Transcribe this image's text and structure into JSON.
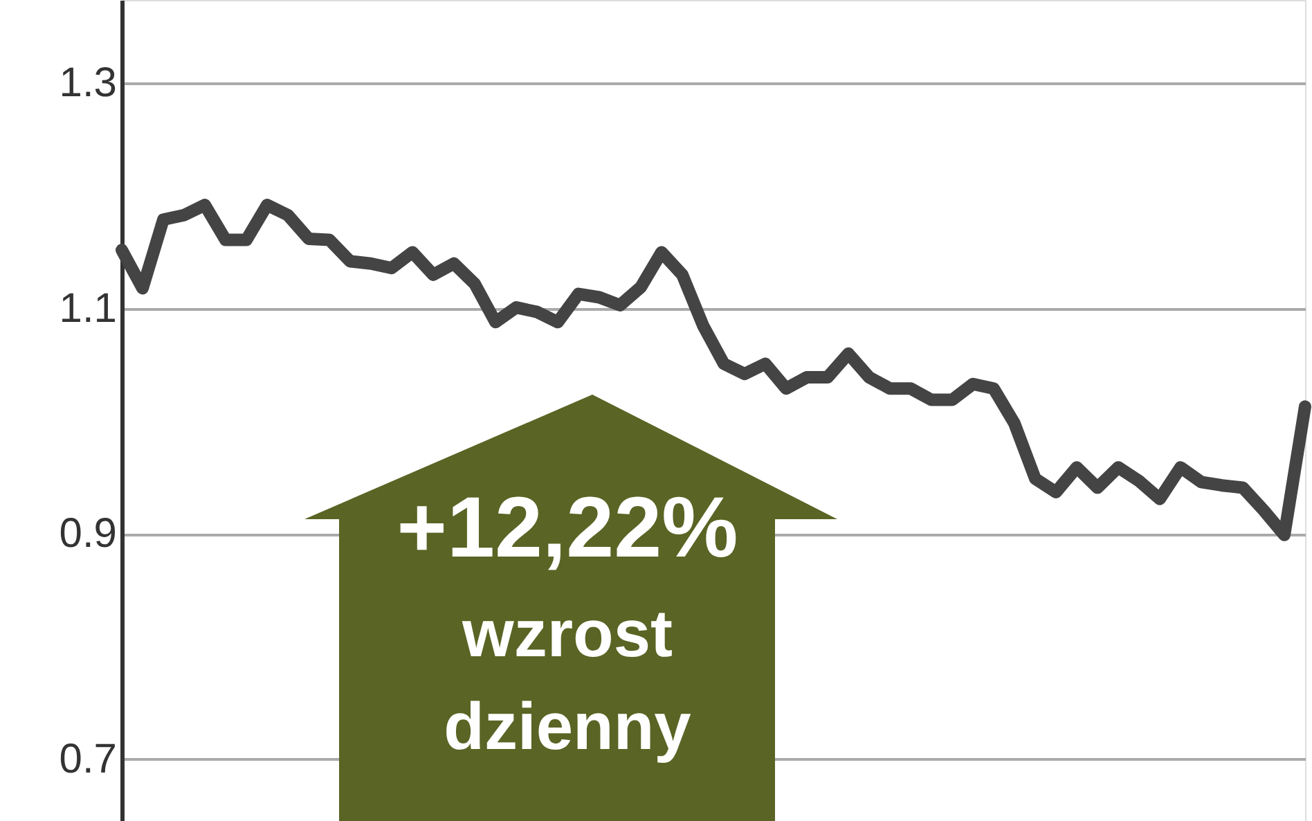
{
  "chart_data": {
    "type": "line",
    "categories": [
      null,
      null,
      null,
      null,
      null,
      null,
      null,
      null,
      null,
      null,
      null,
      null,
      null,
      null,
      null,
      null,
      null,
      null,
      null,
      null,
      null,
      null,
      null,
      null,
      null,
      null,
      null,
      null,
      null,
      null,
      null,
      null,
      null,
      null,
      null,
      null,
      null,
      null,
      null,
      null,
      null,
      null,
      null,
      null,
      null,
      null,
      null,
      null,
      null,
      null,
      null,
      null,
      null,
      null,
      null,
      null,
      null,
      null
    ],
    "series": [
      {
        "color": "#444444",
        "values": [
          1.152,
          1.118,
          1.179,
          1.183,
          1.192,
          1.161,
          1.161,
          1.192,
          1.183,
          1.162,
          1.161,
          1.142,
          1.14,
          1.136,
          1.15,
          1.13,
          1.14,
          1.122,
          1.088,
          1.101,
          1.097,
          1.088,
          1.113,
          1.11,
          1.103,
          1.119,
          1.15,
          1.13,
          1.085,
          1.051,
          1.042,
          1.051,
          1.029,
          1.039,
          1.039,
          1.06,
          1.039,
          1.029,
          1.029,
          1.019,
          1.019,
          1.033,
          1.029,
          0.998,
          0.949,
          0.937,
          0.959,
          0.941,
          0.959,
          0.947,
          0.931,
          0.959,
          0.946,
          0.943,
          0.941,
          0.921,
          0.899,
          1.013
        ]
      }
    ],
    "ylim": [
      0.645,
      1.374
    ],
    "yticks": [
      0.7,
      0.9,
      1.1,
      1.3
    ],
    "grid": "y",
    "tick_labels": "y",
    "line_style": "solid",
    "annotations": [
      "+12,22%",
      "wzrost",
      "dzienny"
    ]
  }
}
